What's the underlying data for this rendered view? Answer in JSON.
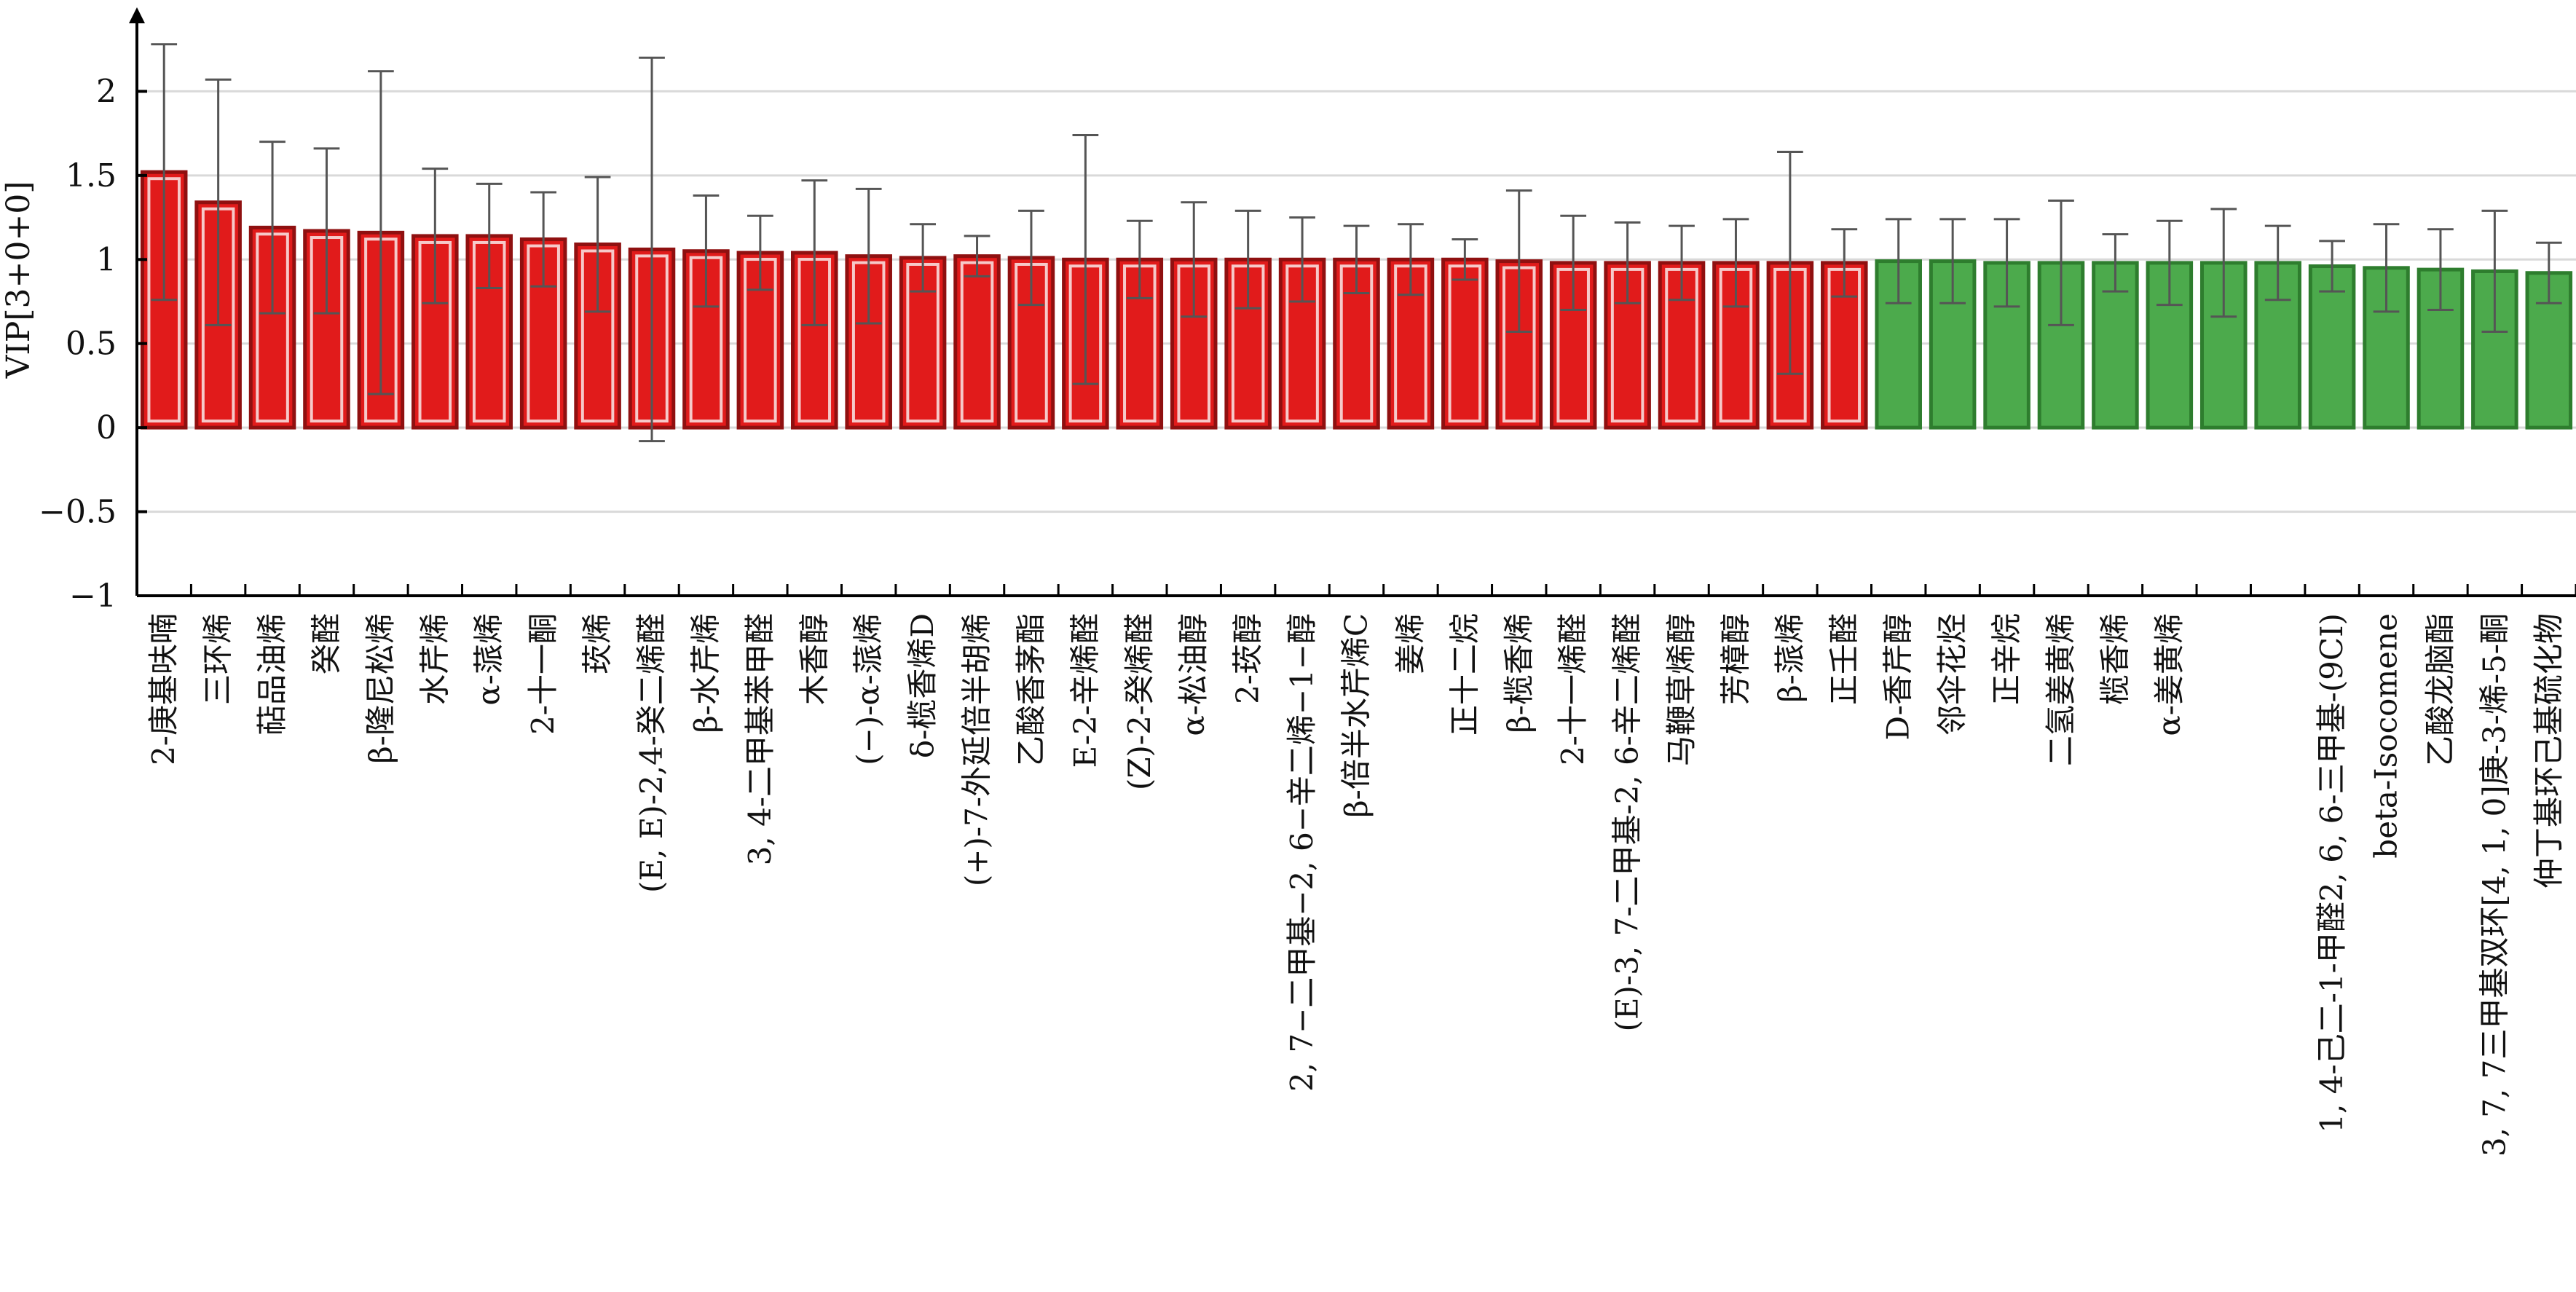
{
  "chart_data": {
    "type": "bar",
    "ylabel": "VIP[3+0+0]",
    "ylim": [
      -1,
      2.5
    ],
    "yticks": [
      -1,
      -0.5,
      0,
      0.5,
      1,
      1.5,
      2
    ],
    "ytick_labels": [
      "−1",
      "−0.5",
      "0",
      "0.5",
      "1",
      "1.5",
      "2"
    ],
    "grid": true,
    "colors": {
      "important_fill": "#e11b1b",
      "important_edge": "#8f1010",
      "other_fill": "#4caa4c",
      "other_edge": "#2e7d2e",
      "errorbar": "#555555",
      "grid": "#d9d9d9",
      "axis": "#000000"
    },
    "categories": [
      "2-庚基呋喃",
      "三环烯",
      "萜品油烯",
      "癸醛",
      "β-隆尼松烯",
      "水芹烯",
      "α-蒎烯",
      "2-十一酮",
      "莰烯",
      "(E, E)-2,4-癸二烯醛",
      "β-水芹烯",
      "3, 4-二甲基苯甲醛",
      "木香醇",
      "(−)-α-蒎烯",
      "δ-榄香烯D",
      "(+)-7-外延倍半胡烯",
      "乙酸香茅酯",
      "E-2-辛烯醛",
      "(Z)-2-癸烯醛",
      "α-松油醇",
      "2-莰醇",
      "2, 7−二甲基−2, 6−辛二烯−1−醇",
      "β-倍半水芹烯C",
      "姜烯",
      "正十二烷",
      "β-榄香烯",
      "2-十一烯醛",
      "(E)-3, 7-二甲基-2, 6-辛二烯醛",
      "马鞭草烯醇",
      "芳樟醇",
      "β-蒎烯",
      "正壬醛",
      "D-香芹醇",
      "邻伞花烃",
      "正辛烷",
      "二氢姜黄烯",
      "榄香烯",
      "α-姜黄烯",
      "",
      "",
      "1, 4-己二-1-甲醛2, 6, 6-三甲基-(9CI)",
      "beta-Isocomene",
      "乙酸龙脑酯",
      "3, 7, 7三甲基双环[4, 1, 0]庚-3-烯-5-酮",
      "仲丁基环己基硫化物"
    ],
    "values": [
      1.52,
      1.34,
      1.19,
      1.17,
      1.16,
      1.14,
      1.14,
      1.12,
      1.09,
      1.06,
      1.05,
      1.04,
      1.04,
      1.02,
      1.01,
      1.02,
      1.01,
      1.0,
      1.0,
      1.0,
      1.0,
      1.0,
      1.0,
      1.0,
      1.0,
      0.99,
      0.98,
      0.98,
      0.98,
      0.98,
      0.98,
      0.98,
      0.99,
      0.99,
      0.98,
      0.98,
      0.98,
      0.98,
      0.98,
      0.98,
      0.96,
      0.95,
      0.94,
      0.93,
      0.92
    ],
    "errors": [
      0.76,
      0.73,
      0.51,
      0.49,
      0.96,
      0.4,
      0.31,
      0.28,
      0.4,
      1.14,
      0.33,
      0.22,
      0.43,
      0.4,
      0.2,
      0.12,
      0.28,
      0.74,
      0.23,
      0.34,
      0.29,
      0.25,
      0.2,
      0.21,
      0.12,
      0.42,
      0.28,
      0.24,
      0.22,
      0.26,
      0.66,
      0.2,
      0.25,
      0.25,
      0.26,
      0.37,
      0.17,
      0.25,
      0.32,
      0.22,
      0.15,
      0.26,
      0.24,
      0.36,
      0.18
    ],
    "important_count": 32
  }
}
